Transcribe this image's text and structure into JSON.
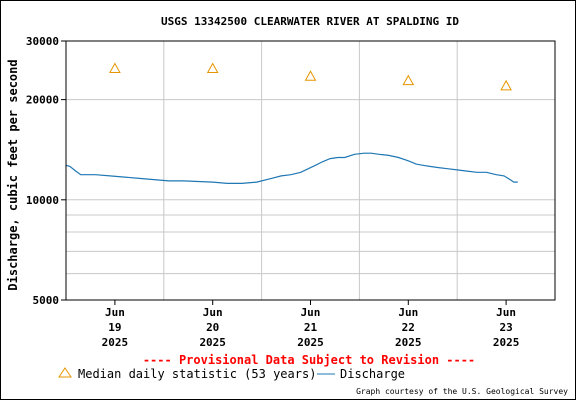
{
  "chart_data": {
    "type": "line",
    "title": "USGS 13342500 CLEARWATER RIVER AT SPALDING ID",
    "ylabel": "Discharge, cubic feet per second",
    "y_scale": "log",
    "ylim": [
      5000,
      30000
    ],
    "y_ticks": [
      {
        "value": 5000,
        "label": "5000"
      },
      {
        "value": 10000,
        "label": "10000"
      },
      {
        "value": 20000,
        "label": "20000"
      },
      {
        "value": 30000,
        "label": "30000"
      }
    ],
    "y_minor_gridlines": [
      6000,
      7000,
      8000,
      9000
    ],
    "xlim": [
      0,
      5
    ],
    "x_ticks": [
      {
        "x": 0.5,
        "line1": "Jun",
        "line2": "19",
        "line3": "2025"
      },
      {
        "x": 1.5,
        "line1": "Jun",
        "line2": "20",
        "line3": "2025"
      },
      {
        "x": 2.5,
        "line1": "Jun",
        "line2": "21",
        "line3": "2025"
      },
      {
        "x": 3.5,
        "line1": "Jun",
        "line2": "22",
        "line3": "2025"
      },
      {
        "x": 4.5,
        "line1": "Jun",
        "line2": "23",
        "line3": "2025"
      }
    ],
    "grid": true,
    "series": [
      {
        "name": "Discharge",
        "color": "#1f77b4",
        "x": [
          0.0,
          0.04,
          0.1,
          0.15,
          0.3,
          0.45,
          0.6,
          0.75,
          0.9,
          1.05,
          1.2,
          1.35,
          1.5,
          1.65,
          1.8,
          1.95,
          2.1,
          2.2,
          2.3,
          2.4,
          2.55,
          2.62,
          2.7,
          2.78,
          2.85,
          2.95,
          3.05,
          3.12,
          3.2,
          3.3,
          3.4,
          3.5,
          3.58,
          3.65,
          3.72,
          3.8,
          3.9,
          4.0,
          4.1,
          4.2,
          4.3,
          4.4,
          4.48,
          4.52,
          4.58,
          4.62
        ],
        "y": [
          12700,
          12600,
          12200,
          11900,
          11900,
          11800,
          11700,
          11600,
          11500,
          11400,
          11400,
          11350,
          11300,
          11200,
          11200,
          11300,
          11600,
          11800,
          11900,
          12100,
          12700,
          13000,
          13300,
          13400,
          13400,
          13700,
          13800,
          13800,
          13700,
          13600,
          13400,
          13100,
          12800,
          12700,
          12600,
          12500,
          12400,
          12300,
          12200,
          12100,
          12100,
          11900,
          11800,
          11600,
          11300,
          11300
        ]
      },
      {
        "name": "Median daily statistic (53 years)",
        "color": "#e69500",
        "marker": "triangle",
        "x": [
          0.5,
          1.5,
          2.5,
          3.5,
          4.5
        ],
        "y": [
          24800,
          24800,
          23500,
          22800,
          22000
        ]
      }
    ],
    "legend": [
      {
        "marker": "triangle",
        "color": "#e69500",
        "label": "Median daily statistic (53 years)"
      },
      {
        "marker": "line",
        "color": "#1f77b4",
        "label": "Discharge"
      }
    ],
    "legend_position": "bottom-left",
    "annotation": "---- Provisional Data Subject to Revision ----",
    "credit": "Graph courtesy of the U.S. Geological Survey"
  }
}
